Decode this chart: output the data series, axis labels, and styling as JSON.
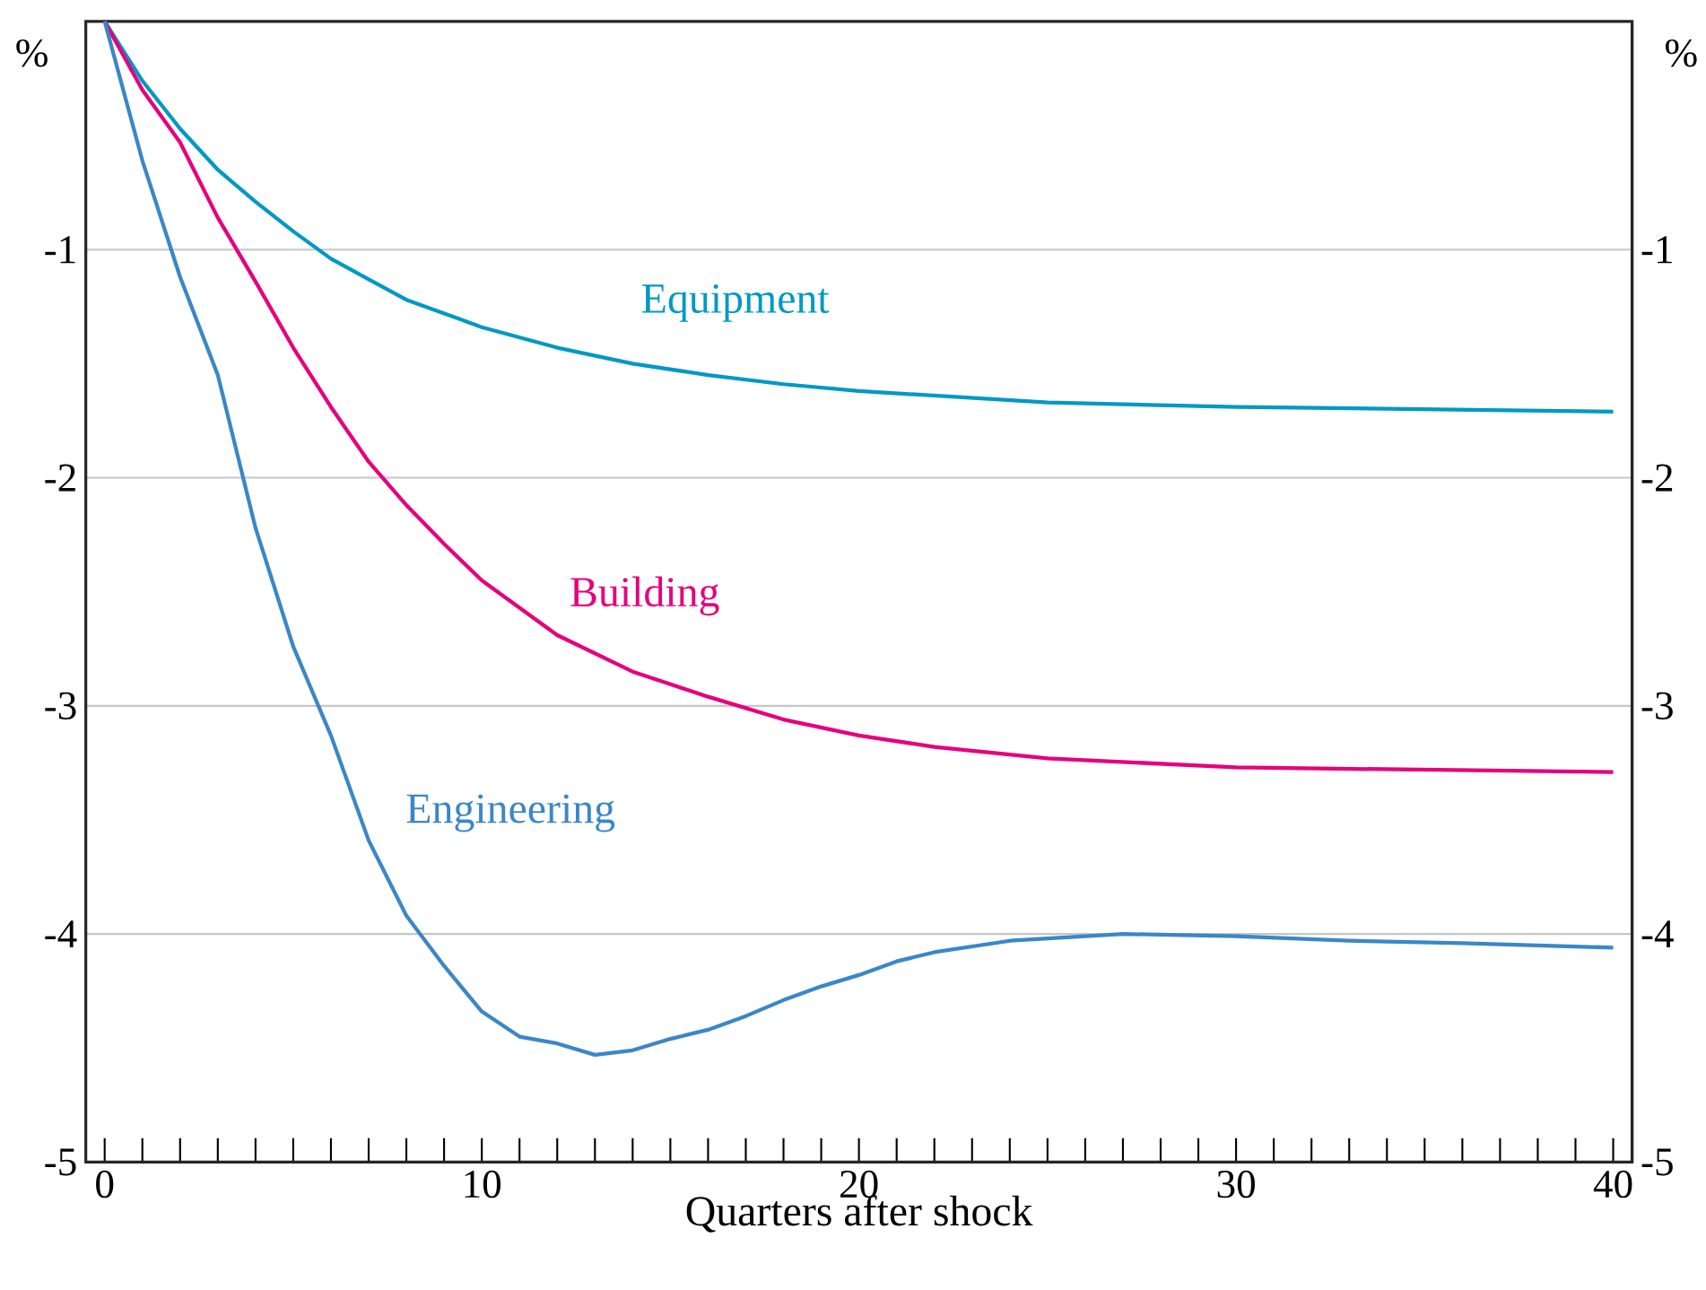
{
  "chart_data": {
    "type": "line",
    "xlabel": "Quarters after shock",
    "ylabel": "%",
    "y2label": "%",
    "xlim": [
      -0.5,
      40.5
    ],
    "xticks": [
      0,
      10,
      20,
      30,
      40
    ],
    "ylim": [
      -5,
      0
    ],
    "yticks": [
      -5,
      -4,
      -3,
      -2,
      -1
    ],
    "y2lim": [
      -5,
      0
    ],
    "y2ticks": [
      -5,
      -4,
      -3,
      -2,
      -1
    ],
    "grid": "y",
    "legend": false,
    "marker": "none",
    "line_style": "solid",
    "series": [
      {
        "name": "Equipment",
        "color": "#0099c4",
        "x": [
          0,
          1,
          2,
          3,
          4,
          5,
          6,
          7,
          8,
          10,
          12,
          14,
          16,
          18,
          20,
          25,
          30,
          35,
          40
        ],
        "values": [
          0,
          -0.26,
          -0.47,
          -0.65,
          -0.79,
          -0.92,
          -1.04,
          -1.13,
          -1.22,
          -1.34,
          -1.43,
          -1.5,
          -1.55,
          -1.59,
          -1.62,
          -1.67,
          -1.69,
          -1.7,
          -1.71
        ]
      },
      {
        "name": "Building",
        "color": "#e6007e",
        "x": [
          0,
          1,
          2,
          3,
          4,
          5,
          6,
          7,
          8,
          9,
          10,
          12,
          14,
          16,
          18,
          20,
          22,
          25,
          30,
          35,
          40
        ],
        "values": [
          0,
          -0.3,
          -0.53,
          -0.86,
          -1.14,
          -1.43,
          -1.69,
          -1.93,
          -2.12,
          -2.29,
          -2.45,
          -2.69,
          -2.85,
          -2.96,
          -3.06,
          -3.13,
          -3.18,
          -3.23,
          -3.27,
          -3.28,
          -3.29
        ]
      },
      {
        "name": "Engineering",
        "color": "#3a87c8",
        "x": [
          0,
          1,
          2,
          3,
          4,
          5,
          6,
          7,
          8,
          9,
          10,
          11,
          12,
          13,
          14,
          15,
          16,
          17,
          18,
          19,
          20,
          21,
          22,
          24,
          26,
          27,
          30,
          33,
          36,
          40
        ],
        "values": [
          0,
          -0.61,
          -1.12,
          -1.55,
          -2.22,
          -2.74,
          -3.13,
          -3.59,
          -3.92,
          -4.14,
          -4.34,
          -4.45,
          -4.48,
          -4.53,
          -4.51,
          -4.46,
          -4.42,
          -4.36,
          -4.29,
          -4.23,
          -4.18,
          -4.12,
          -4.08,
          -4.03,
          -4.01,
          -4.0,
          -4.01,
          -4.03,
          -4.04,
          -4.06
        ]
      }
    ]
  }
}
